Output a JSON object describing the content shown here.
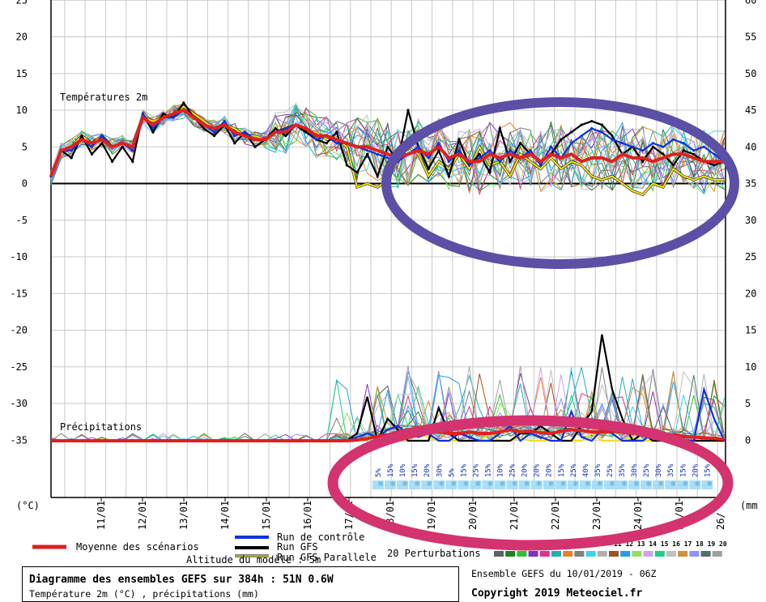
{
  "chart_data": {
    "type": "line",
    "left_axis": {
      "unit_label": "(°C)",
      "ticks": [
        25,
        20,
        15,
        10,
        5,
        0,
        -5,
        -10,
        -15,
        -20,
        -25,
        -30,
        -35
      ],
      "ylim": [
        -45,
        25
      ]
    },
    "right_axis": {
      "unit_label": "(mm",
      "ticks": [
        60,
        55,
        50,
        45,
        40,
        35,
        30,
        25,
        20,
        15,
        10,
        5,
        0
      ]
    },
    "x_ticks": [
      "11/01",
      "12/01",
      "13/01",
      "14/01",
      "15/01",
      "16/01",
      "17/01",
      "18/01",
      "19/01",
      "20/01",
      "21/01",
      "22/01",
      "23/01",
      "24/01",
      "25/01",
      "26/"
    ],
    "grid": true,
    "panel_labels": {
      "temperature": "Températures 2m",
      "precipitation": "Précipitations"
    },
    "series": [
      {
        "name": "Moyenne des scénarios",
        "color": "#e02020",
        "temperature": [
          1,
          4.5,
          5,
          6,
          5.5,
          6,
          5,
          5.5,
          5,
          9,
          8,
          9,
          9.5,
          10,
          9,
          8,
          7.5,
          8,
          7,
          6.5,
          6,
          6,
          7,
          7,
          8,
          7.5,
          6.5,
          6.5,
          6,
          5.5,
          5,
          5,
          4.5,
          4,
          3.5,
          4,
          4.5,
          4,
          5,
          3.5,
          4,
          3,
          3,
          4,
          3.5,
          4,
          3.5,
          4,
          3,
          4,
          3.5,
          4,
          3,
          3.5,
          3.5,
          3,
          4,
          3.5,
          3.5,
          3,
          3.5,
          4,
          4,
          3.5,
          3,
          3,
          3
        ],
        "precipitation": [
          0,
          0,
          0,
          0,
          0,
          0,
          0,
          0,
          0,
          0,
          0,
          0,
          0,
          0,
          0,
          0,
          0,
          0,
          0,
          0,
          0,
          0,
          0,
          0,
          0,
          0,
          0,
          0,
          0,
          0,
          0.1,
          0.3,
          0.6,
          0.8,
          1.2,
          1.5,
          1.8,
          1.5,
          1.2,
          1,
          1,
          1.2,
          1,
          1,
          1.2,
          1.5,
          1.2,
          1.3,
          1.1,
          1,
          1.3,
          1.5,
          1.4,
          1.2,
          1.2,
          1.3,
          1.2,
          1,
          1.2,
          1,
          0.8,
          0.8,
          0.6,
          0.5,
          0.4,
          0.3,
          0.2
        ]
      },
      {
        "name": "Run de contrôle",
        "color": "#1030e0",
        "temperature": [
          1,
          4.5,
          4.5,
          6,
          5,
          6.5,
          5,
          5.5,
          4.5,
          9.5,
          7.5,
          9,
          9,
          10,
          9,
          8,
          7,
          8.5,
          6.5,
          7,
          6,
          6,
          7,
          7.5,
          8,
          7.5,
          6,
          6.5,
          5.5,
          5.5,
          5,
          4.5,
          4,
          3.5,
          3,
          4,
          5,
          3.5,
          5.5,
          3,
          4.5,
          2.5,
          3.5,
          4.5,
          3,
          4.5,
          3.5,
          4.5,
          2.5,
          5,
          3.5,
          5.5,
          6.5,
          7.5,
          7,
          6,
          5.5,
          5,
          4.5,
          5.5,
          5,
          6,
          5.5,
          4.5,
          5,
          4,
          3
        ],
        "precipitation": [
          0,
          0,
          0,
          0,
          0,
          0,
          0,
          0,
          0,
          0,
          0,
          0,
          0,
          0,
          0,
          0,
          0,
          0,
          0,
          0,
          0,
          0,
          0,
          0,
          0,
          0,
          0,
          0,
          0,
          0,
          0.5,
          1,
          0.5,
          1.5,
          2,
          1,
          0.5,
          1,
          0,
          0,
          1,
          0.5,
          0,
          0,
          1,
          2,
          0,
          1,
          0.5,
          0,
          0,
          4,
          0.5,
          0,
          1.5,
          1,
          0,
          0,
          0,
          1,
          0,
          0,
          0,
          0,
          7,
          3,
          0
        ]
      },
      {
        "name": "Run GFS",
        "color": "#000000",
        "temperature": [
          1,
          4.5,
          3.5,
          6.5,
          4,
          5.5,
          3,
          5,
          3,
          9.5,
          7,
          9.5,
          9,
          11,
          9,
          7.5,
          6.5,
          8,
          5.5,
          7,
          5,
          6,
          7.5,
          6.5,
          8,
          7,
          6,
          5.5,
          7,
          2.5,
          1.5,
          4,
          1,
          5,
          3,
          10,
          5,
          2,
          4.5,
          1,
          6,
          2.5,
          4,
          1.5,
          7.5,
          3,
          5.5,
          4,
          3,
          4,
          6,
          7,
          8,
          8.5,
          8,
          6.5,
          4,
          5,
          3,
          5,
          4,
          2.5,
          4.5,
          4,
          3,
          2.5,
          3
        ],
        "precipitation": [
          0,
          0,
          0,
          0,
          0,
          0,
          0,
          0,
          0,
          0,
          0,
          0,
          0,
          0,
          0,
          0,
          0,
          0,
          0,
          0,
          0,
          0,
          0,
          0,
          0,
          0,
          0,
          0,
          0,
          0,
          1,
          6,
          0,
          3,
          1.5,
          0,
          0,
          0,
          4.5,
          1,
          0,
          0,
          0,
          0,
          0,
          0,
          1,
          1,
          2,
          1,
          0,
          0,
          2,
          4,
          14.5,
          7,
          3,
          0,
          1,
          0,
          0,
          0,
          0,
          0,
          0,
          0,
          0
        ]
      },
      {
        "name": "Run GFS Parallele",
        "color": "#f0e020",
        "temperature": [
          1,
          4.5,
          5,
          6.5,
          5.5,
          6.5,
          5,
          5.5,
          5,
          9,
          8.5,
          9,
          9.5,
          10.5,
          9.5,
          8.5,
          7.5,
          8,
          7.5,
          6.5,
          6.5,
          6,
          7,
          7.5,
          8,
          7,
          7,
          6,
          6,
          5,
          -0.5,
          0,
          -0.5,
          0.5,
          3,
          5,
          4,
          1,
          3,
          2,
          4,
          2,
          5,
          2.5,
          3,
          1,
          4,
          3,
          2,
          3.5,
          2,
          3,
          2.5,
          1,
          0.5,
          1,
          0,
          -1,
          -1.5,
          0,
          -0.5,
          2,
          1,
          0.5,
          1,
          0.5,
          0.5
        ],
        "precipitation": [
          0,
          0,
          0,
          0,
          0,
          0,
          0,
          0,
          0,
          0,
          0,
          0,
          0,
          0,
          0,
          0,
          0,
          0,
          0,
          0,
          0,
          0,
          0,
          0,
          0,
          0,
          0,
          0,
          0,
          0,
          0,
          0.5,
          0.5,
          0,
          0,
          0,
          1,
          0.5,
          0,
          0,
          0,
          0,
          0,
          1,
          0,
          0,
          0.5,
          0,
          0,
          0,
          0,
          0,
          0,
          1,
          0,
          0,
          0,
          0.5,
          0,
          0,
          0,
          0,
          0,
          0,
          0,
          0,
          0
        ]
      }
    ],
    "perturbation_colors": [
      "#606060",
      "#1e8020",
      "#30c030",
      "#8030c0",
      "#e03090",
      "#20b0b0",
      "#f08020",
      "#808080",
      "#40d0f0",
      "#b0b0b0",
      "#a05020",
      "#20a0f0",
      "#90e060",
      "#d0a0f0",
      "#20d080",
      "#c0c0c0",
      "#d09030",
      "#9090ff",
      "#507070",
      "#a0a0a0"
    ],
    "precip_probabilities": [
      "5%",
      "15%",
      "10%",
      "15%",
      "20%",
      "30%",
      "5%",
      "15%",
      "25%",
      "15%",
      "10%",
      "25%",
      "20%",
      "20%",
      "20%",
      "15%",
      "25%",
      "40%",
      "35%",
      "25%",
      "35%",
      "30%",
      "25%",
      "30%",
      "35%",
      "15%",
      "20%",
      "15%"
    ],
    "legend": {
      "mean": "Moyenne des scénarios",
      "control": "Run de contrôle",
      "gfs": "Run GFS",
      "gfs_parallel": "Run GFS Parallele",
      "perturbations_label": "20 Perturbations",
      "perturbation_numbers": "11 12 13 14 15 16 17 18 19 20",
      "altitude": "Altitude du modèle : 5m"
    }
  },
  "info": {
    "title": "Diagramme des ensembles GEFS sur 384h : 51N 0.6W",
    "subtitle": "Température 2m (°C) , précipitations (mm)",
    "ensemble_run": "Ensemble GEFS du 10/01/2019 - 06Z",
    "copyright": "Copyright 2019 Meteociel.fr"
  },
  "annotations": {
    "purple_ellipse_color": "#5b4fa6",
    "pink_ellipse_color": "#d3336f"
  }
}
